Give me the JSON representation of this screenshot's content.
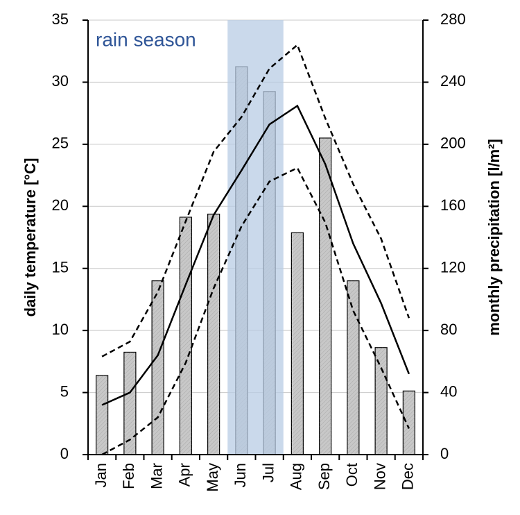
{
  "chart_data": {
    "type": "combo",
    "categories": [
      "Jan",
      "Feb",
      "Mar",
      "Apr",
      "May",
      "Jun",
      "Jul",
      "Aug",
      "Sep",
      "Oct",
      "Nov",
      "Dec"
    ],
    "y_label": "daily temperature [°C]",
    "y2_label": "monthly precipitation [l/m²]",
    "ylim": [
      0,
      35
    ],
    "yticks": [
      0,
      5,
      10,
      15,
      20,
      25,
      30,
      35
    ],
    "y2lim": [
      0,
      280
    ],
    "y2ticks": [
      0,
      40,
      80,
      120,
      160,
      200,
      240,
      280
    ],
    "grid": true,
    "highlight": {
      "from": "Jun",
      "to": "Jul",
      "label": "rain season",
      "color": "#b8cce4"
    },
    "series": [
      {
        "type": "bar",
        "axis": "y2",
        "color": "#c8c8c8",
        "values": [
          51,
          66,
          112,
          153,
          155,
          250,
          234,
          143,
          204,
          112,
          69,
          41
        ]
      },
      {
        "type": "line",
        "style": "dashed",
        "color": "#000000",
        "values": [
          7.9,
          9.1,
          13.1,
          18.8,
          24.4,
          27.2,
          31.1,
          33.0,
          27.1,
          21.8,
          17.4,
          11.0
        ]
      },
      {
        "type": "line",
        "style": "solid",
        "color": "#000000",
        "values": [
          4.0,
          5.0,
          8.0,
          13.7,
          19.3,
          22.9,
          26.6,
          28.1,
          23.4,
          17.0,
          12.2,
          6.5
        ]
      },
      {
        "type": "line",
        "style": "dashed",
        "color": "#000000",
        "values": [
          0,
          1.2,
          3.0,
          7.4,
          13.4,
          18.4,
          22.0,
          23.1,
          18.7,
          11.6,
          7.0,
          2.1
        ]
      }
    ]
  }
}
